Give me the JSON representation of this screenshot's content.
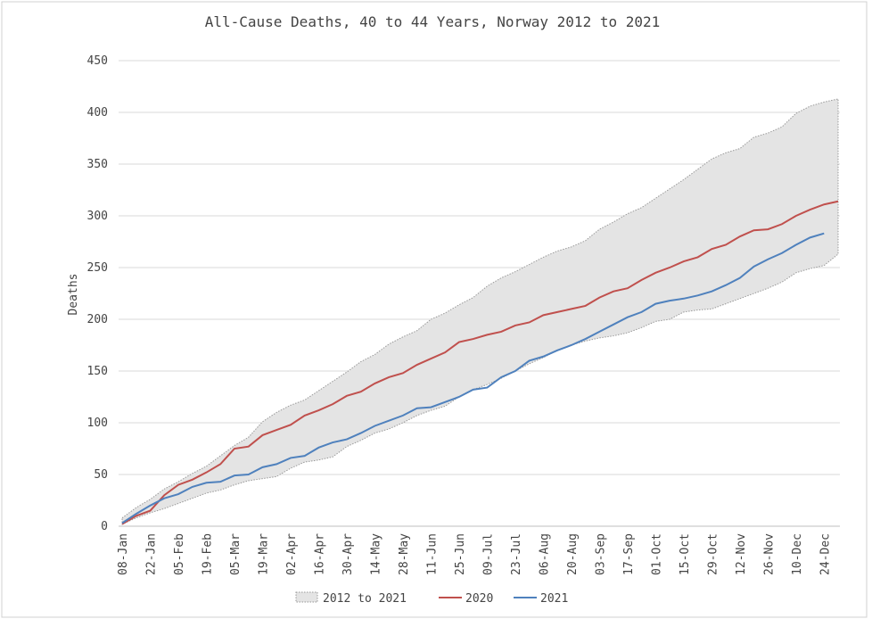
{
  "chart_data": {
    "type": "line",
    "title": "All-Cause Deaths, 40 to 44 Years, Norway 2012 to 2021",
    "y_label": "Deaths",
    "categories": [
      "08-Jan",
      null,
      "22-Jan",
      null,
      "05-Feb",
      null,
      "19-Feb",
      null,
      "05-Mar",
      null,
      "19-Mar",
      null,
      "02-Apr",
      null,
      "16-Apr",
      null,
      "30-Apr",
      null,
      "14-May",
      null,
      "28-May",
      null,
      "11-Jun",
      null,
      "25-Jun",
      null,
      "09-Jul",
      null,
      "23-Jul",
      null,
      "06-Aug",
      null,
      "20-Aug",
      null,
      "03-Sep",
      null,
      "17-Sep",
      null,
      "01-Oct",
      null,
      "15-Oct",
      null,
      "29-Oct",
      null,
      "12-Nov",
      null,
      "26-Nov",
      null,
      "10-Dec",
      null,
      "24-Dec",
      null
    ],
    "band": {
      "name": "2012 to 2021",
      "color": "#e4e4e4",
      "edge_color": "#999999",
      "lower": [
        2,
        8,
        13,
        17,
        22,
        27,
        32,
        35,
        40,
        44,
        46,
        48,
        56,
        62,
        64,
        67,
        77,
        83,
        90,
        94,
        100,
        107,
        112,
        116,
        125,
        132,
        137,
        143,
        150,
        157,
        163,
        170,
        175,
        179,
        182,
        184,
        187,
        192,
        198,
        200,
        207,
        209,
        210,
        215,
        220,
        225,
        230,
        236,
        245,
        249,
        252,
        263
      ],
      "upper": [
        8,
        18,
        26,
        36,
        43,
        51,
        58,
        68,
        78,
        86,
        101,
        110,
        117,
        122,
        131,
        140,
        149,
        159,
        166,
        176,
        183,
        189,
        200,
        206,
        214,
        221,
        232,
        240,
        246,
        253,
        260,
        266,
        270,
        276,
        287,
        294,
        302,
        308,
        317,
        326,
        335,
        345,
        355,
        361,
        365,
        376,
        380,
        386,
        399,
        406,
        410,
        413
      ]
    },
    "series": [
      {
        "name": "2020",
        "color": "#c0504d",
        "values": [
          2,
          10,
          15,
          30,
          40,
          45,
          52,
          60,
          75,
          77,
          88,
          93,
          98,
          107,
          112,
          118,
          126,
          130,
          138,
          144,
          148,
          156,
          162,
          168,
          178,
          181,
          185,
          188,
          194,
          197,
          204,
          207,
          210,
          213,
          221,
          227,
          230,
          238,
          245,
          250,
          256,
          260,
          268,
          272,
          280,
          286,
          287,
          292,
          300,
          306,
          311,
          314
        ]
      },
      {
        "name": "2021",
        "color": "#4f81bd",
        "values": [
          3,
          12,
          20,
          27,
          31,
          38,
          42,
          43,
          49,
          50,
          57,
          60,
          66,
          68,
          76,
          81,
          84,
          90,
          97,
          102,
          107,
          114,
          115,
          120,
          125,
          132,
          134,
          144,
          150,
          160,
          164,
          170,
          175,
          181,
          188,
          195,
          202,
          207,
          215,
          218,
          220,
          223,
          227,
          233,
          240,
          251,
          258,
          264,
          272,
          279,
          283,
          null
        ]
      }
    ],
    "ylim": [
      0,
      450
    ],
    "yticks": [
      0,
      50,
      100,
      150,
      200,
      250,
      300,
      350,
      400,
      450
    ],
    "grid": true
  }
}
